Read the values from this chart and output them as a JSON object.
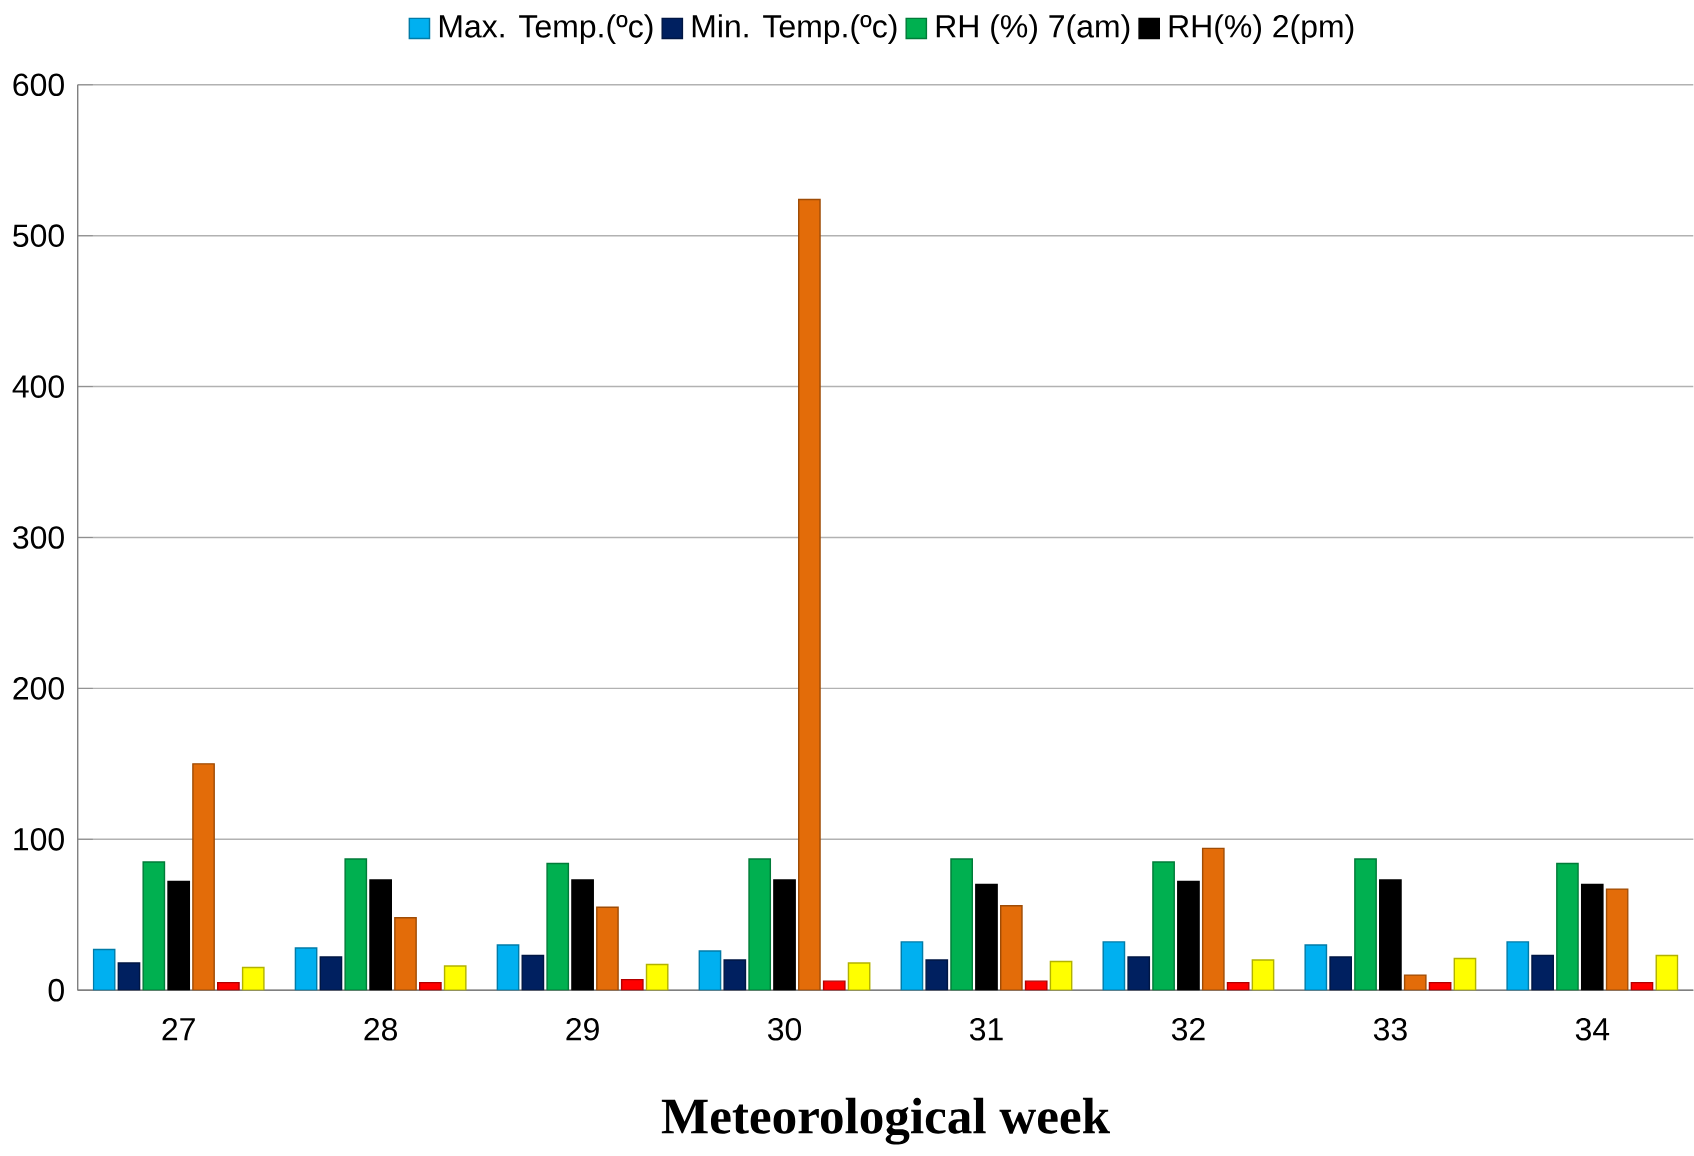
{
  "chart_data": {
    "type": "bar",
    "xlabel": "Meteorological week",
    "categories": [
      "27",
      "28",
      "29",
      "30",
      "31",
      "32",
      "33",
      "34"
    ],
    "series": [
      {
        "name": "Max. Temp.(ºc)",
        "color": "#00b0f0",
        "values": [
          27,
          28,
          30,
          26,
          32,
          32,
          30,
          32
        ]
      },
      {
        "name": "Min. Temp.(ºc)",
        "color": "#002060",
        "values": [
          18,
          22,
          23,
          20,
          20,
          22,
          22,
          23
        ]
      },
      {
        "name": "RH (%) 7(am)",
        "color": "#00b050",
        "values": [
          85,
          87,
          84,
          87,
          87,
          85,
          87,
          84
        ]
      },
      {
        "name": "RH(%) 2(pm)",
        "color": "#000000",
        "values": [
          72,
          73,
          73,
          73,
          70,
          72,
          73,
          70
        ]
      },
      {
        "color": "#e36c09",
        "values": [
          150,
          48,
          55,
          524,
          56,
          94,
          10,
          67
        ]
      },
      {
        "color": "#ff0000",
        "values": [
          5,
          5,
          7,
          6,
          6,
          5,
          5,
          5
        ]
      },
      {
        "color": "#ffff00",
        "values": [
          15,
          16,
          17,
          18,
          19,
          20,
          21,
          23
        ]
      }
    ],
    "ylim": [
      0,
      600
    ],
    "yticks": [
      0,
      100,
      200,
      300,
      400,
      500,
      600
    ],
    "grid": "y",
    "legend": "top"
  }
}
